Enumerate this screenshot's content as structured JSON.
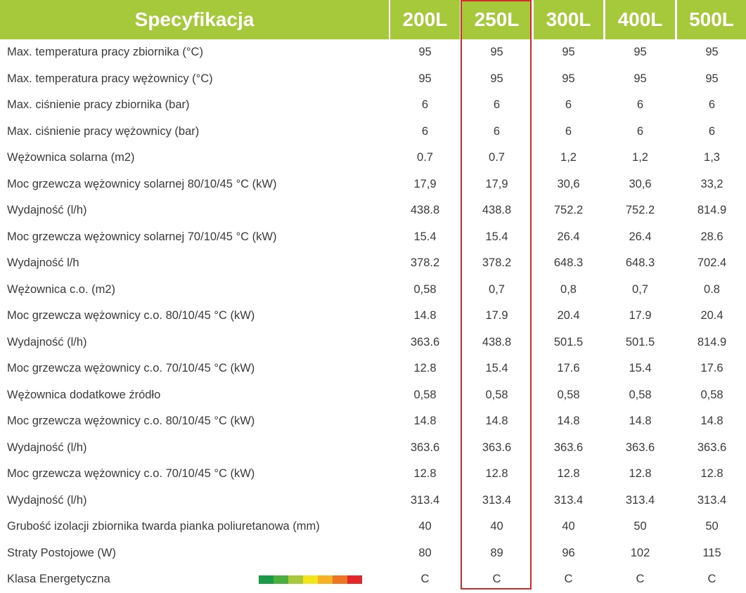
{
  "header": {
    "title": "Specyfikacja",
    "columns": [
      "200L",
      "250L",
      "300L",
      "400L",
      "500L"
    ]
  },
  "rows": [
    {
      "label": "Max. temperatura pracy zbiornika (°C)",
      "values": [
        "95",
        "95",
        "95",
        "95",
        "95"
      ]
    },
    {
      "label": "Max. temperatura pracy wężownicy (°C)",
      "values": [
        "95",
        "95",
        "95",
        "95",
        "95"
      ]
    },
    {
      "label": "Max. ciśnienie pracy zbiornika (bar)",
      "values": [
        "6",
        "6",
        "6",
        "6",
        "6"
      ]
    },
    {
      "label": "Max. ciśnienie pracy wężownicy (bar)",
      "values": [
        "6",
        "6",
        "6",
        "6",
        "6"
      ]
    },
    {
      "label": "Wężownica solarna (m2)",
      "values": [
        "0.7",
        "0.7",
        "1,2",
        "1,2",
        "1,3"
      ]
    },
    {
      "label": "Moc grzewcza wężownicy solarnej 80/10/45 °C (kW)",
      "values": [
        "17,9",
        "17,9",
        "30,6",
        "30,6",
        "33,2"
      ]
    },
    {
      "label": "Wydajność (l/h)",
      "values": [
        "438.8",
        "438.8",
        "752.2",
        "752.2",
        "814.9"
      ]
    },
    {
      "label": "Moc grzewcza wężownicy solarnej 70/10/45 °C (kW)",
      "values": [
        "15.4",
        "15.4",
        "26.4",
        "26.4",
        "28.6"
      ]
    },
    {
      "label": "Wydajność l/h",
      "values": [
        "378.2",
        "378.2",
        "648.3",
        "648.3",
        "702.4"
      ]
    },
    {
      "label": "Wężownica c.o. (m2)",
      "values": [
        "0,58",
        "0,7",
        "0,8",
        "0,7",
        "0.8"
      ]
    },
    {
      "label": "Moc grzewcza wężownicy c.o. 80/10/45 °C (kW)",
      "values": [
        "14.8",
        "17.9",
        "20.4",
        "17.9",
        "20.4"
      ]
    },
    {
      "label": "Wydajność (l/h)",
      "values": [
        "363.6",
        "438.8",
        "501.5",
        "501.5",
        "814.9"
      ]
    },
    {
      "label": "Moc grzewcza wężownicy c.o. 70/10/45 °C (kW)",
      "values": [
        "12.8",
        "15.4",
        "17.6",
        "15.4",
        "17.6"
      ]
    },
    {
      "label": "Wężownica dodatkowe źródło",
      "values": [
        "0,58",
        "0,58",
        "0,58",
        "0,58",
        "0,58"
      ]
    },
    {
      "label": "Moc grzewcza wężownicy c.o. 80/10/45 °C (kW)",
      "values": [
        "14.8",
        "14.8",
        "14.8",
        "14.8",
        "14.8"
      ]
    },
    {
      "label": "Wydajność (l/h)",
      "values": [
        "363.6",
        "363.6",
        "363.6",
        "363.6",
        "363.6"
      ]
    },
    {
      "label": "Moc grzewcza wężownicy c.o. 70/10/45 °C (kW)",
      "values": [
        "12.8",
        "12.8",
        "12.8",
        "12.8",
        "12.8"
      ]
    },
    {
      "label": "Wydajność (l/h)",
      "values": [
        "313.4",
        "313.4",
        "313.4",
        "313.4",
        "313.4"
      ]
    },
    {
      "label": "Grubość izolacji zbiornika twarda pianka poliuretanowa (mm)",
      "values": [
        "40",
        "40",
        "40",
        "50",
        "50"
      ]
    },
    {
      "label": "Straty Postojowe (W)",
      "values": [
        "80",
        "89",
        "96",
        "102",
        "115"
      ]
    },
    {
      "label": "Klasa Energetyczna",
      "values": [
        "C",
        "C",
        "C",
        "C",
        "C"
      ]
    }
  ],
  "colors": {
    "header_bg": "#a5c93a",
    "header_text": "#ffffff",
    "highlight_border": "#d42a2a",
    "energy_scale": [
      "#1a9a46",
      "#4cae3f",
      "#a6c83a",
      "#f4e51b",
      "#f7b321",
      "#ee7523",
      "#e3262a"
    ]
  },
  "highlighted_column": "250L"
}
